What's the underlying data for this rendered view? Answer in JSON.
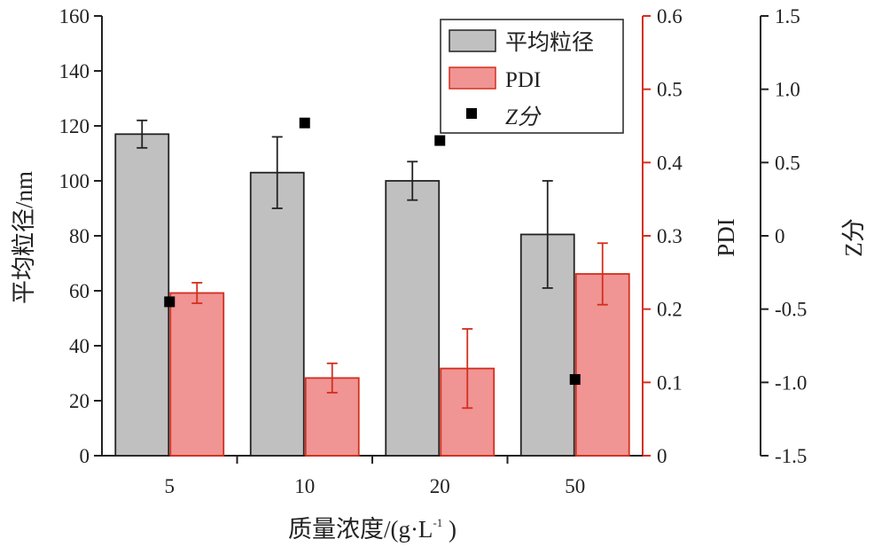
{
  "chart_data": {
    "type": "bar",
    "xlabel_main": "质量浓度/(g·L",
    "xlabel_sup": "-1",
    "xlabel_tail": " )",
    "categories": [
      "5",
      "10",
      "20",
      "50"
    ],
    "axes": {
      "left": {
        "label": "平均粒径/nm",
        "ylim": [
          0,
          160
        ],
        "ticks": [
          "0",
          "20",
          "40",
          "60",
          "80",
          "100",
          "120",
          "140",
          "160"
        ],
        "color": "#222222"
      },
      "right1": {
        "label": "PDI",
        "ylim": [
          0,
          0.6
        ],
        "ticks": [
          "0",
          "0.1",
          "0.2",
          "0.3",
          "0.4",
          "0.5",
          "0.6"
        ],
        "color": "#d32f1e"
      },
      "right2": {
        "label": "Z分",
        "ylim": [
          -1.5,
          1.5
        ],
        "ticks": [
          "-1.5",
          "-1.0",
          "-0.5",
          "0",
          "0.5",
          "1.0",
          "1.5"
        ],
        "color": "#222222"
      }
    },
    "series": [
      {
        "name": "平均粒径",
        "kind": "bar",
        "axis": "left",
        "values": [
          117,
          103,
          100,
          80.5
        ],
        "errors": [
          5,
          13,
          7,
          19.5
        ],
        "fill": "#c0c0c0",
        "stroke": "#222222"
      },
      {
        "name": "PDI",
        "kind": "bar",
        "axis": "right1",
        "values": [
          0.222,
          0.106,
          0.119,
          0.248
        ],
        "errors": [
          0.014,
          0.02,
          0.054,
          0.042
        ],
        "fill": "#f09494",
        "stroke": "#d32f1e"
      },
      {
        "name": "Z分",
        "kind": "scatter",
        "axis": "right2",
        "values": [
          -0.45,
          0.77,
          0.65,
          -0.98
        ],
        "color": "#000000"
      }
    ],
    "legend": {
      "placement": "top-right",
      "entries": [
        "平均粒径",
        "PDI",
        "Z分"
      ]
    },
    "grid": false
  }
}
